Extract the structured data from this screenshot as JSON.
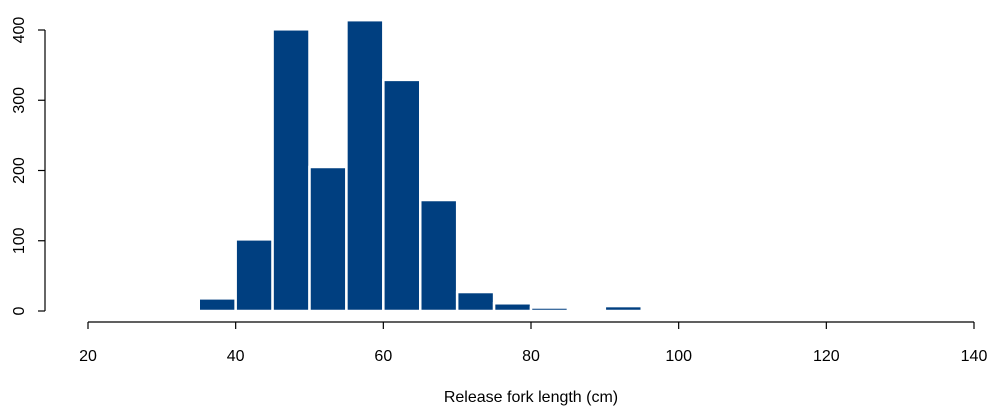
{
  "chart_data": {
    "type": "histogram",
    "xlabel": "Release fork length (cm)",
    "bins": [
      35,
      40,
      45,
      50,
      55,
      60,
      65,
      70,
      75,
      80,
      85,
      90,
      95
    ],
    "values": [
      18,
      102,
      401,
      205,
      414,
      329,
      158,
      27,
      11,
      5,
      0,
      7
    ],
    "color": "#003f80",
    "xlim": [
      20,
      140
    ],
    "xticks": [
      20,
      40,
      60,
      80,
      100,
      120,
      140
    ],
    "ylim": [
      0,
      400
    ],
    "yticks": [
      0,
      100,
      200,
      300,
      400
    ],
    "grid": false
  }
}
